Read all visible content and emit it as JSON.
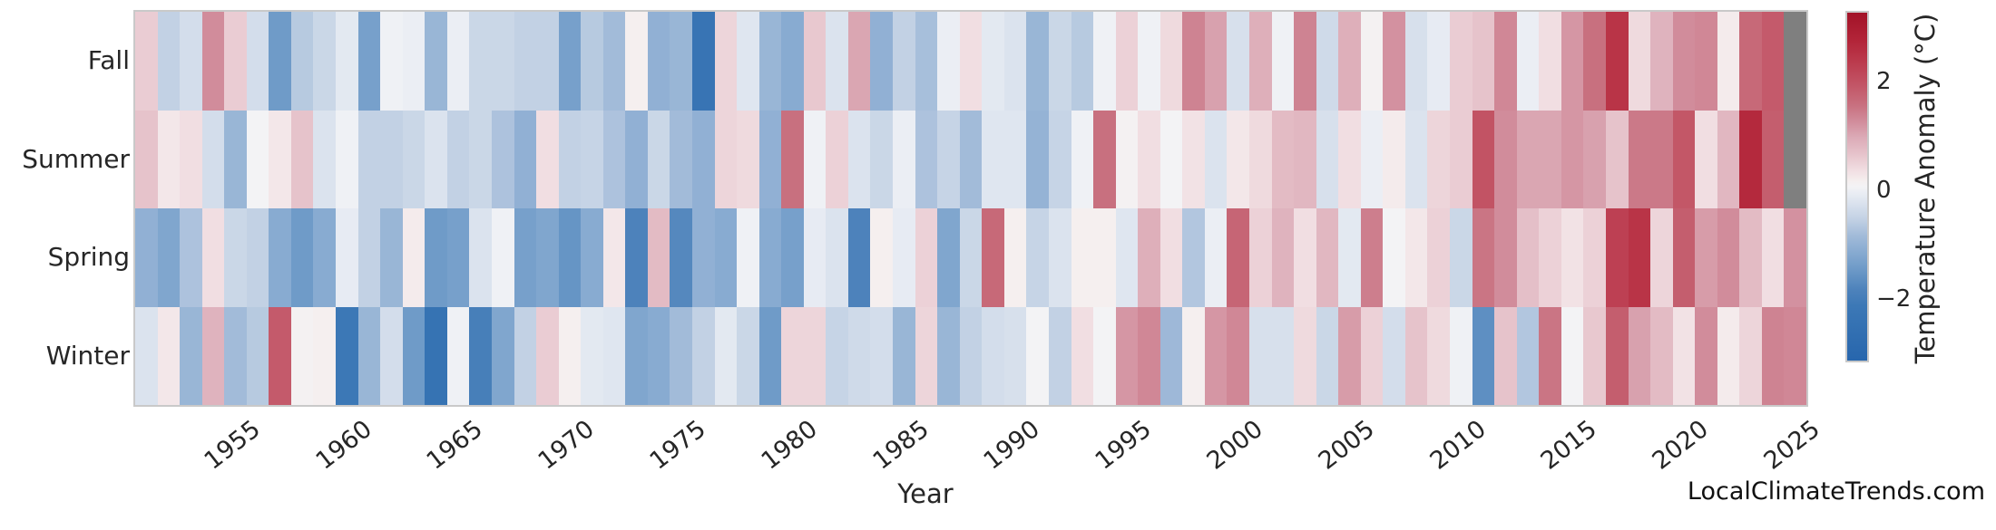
{
  "page": {
    "watermark": "LocalClimateTrends.com"
  },
  "chart_data": {
    "type": "heatmap",
    "xlabel": "Year",
    "colorbar_label": "Temperature Anomaly (°C)",
    "rows": [
      "Fall",
      "Summer",
      "Spring",
      "Winter"
    ],
    "years": [
      1951,
      1952,
      1953,
      1954,
      1955,
      1956,
      1957,
      1958,
      1959,
      1960,
      1961,
      1962,
      1963,
      1964,
      1965,
      1966,
      1967,
      1968,
      1969,
      1970,
      1971,
      1972,
      1973,
      1974,
      1975,
      1976,
      1977,
      1978,
      1979,
      1980,
      1981,
      1982,
      1983,
      1984,
      1985,
      1986,
      1987,
      1988,
      1989,
      1990,
      1991,
      1992,
      1993,
      1994,
      1995,
      1996,
      1997,
      1998,
      1999,
      2000,
      2001,
      2002,
      2003,
      2004,
      2005,
      2006,
      2007,
      2008,
      2009,
      2010,
      2011,
      2012,
      2013,
      2014,
      2015,
      2016,
      2017,
      2018,
      2019,
      2020,
      2021,
      2022,
      2023,
      2024,
      2025
    ],
    "x_ticks": [
      1955,
      1960,
      1965,
      1970,
      1975,
      1980,
      1985,
      1990,
      1995,
      2000,
      2005,
      2010,
      2015,
      2020,
      2025
    ],
    "series": [
      {
        "name": "Fall",
        "values": [
          0.5,
          -0.6,
          -0.4,
          1.2,
          0.5,
          -0.4,
          -1.5,
          -0.7,
          -0.5,
          -0.2,
          -1.4,
          -0.05,
          -0.1,
          -1.0,
          -0.1,
          -0.5,
          -0.5,
          -0.6,
          -0.6,
          -1.4,
          -0.7,
          -0.9,
          0.1,
          -1.1,
          -1.0,
          -2.4,
          0.4,
          -0.25,
          -1.0,
          -1.2,
          0.55,
          -0.3,
          0.95,
          -1.1,
          -0.6,
          -0.85,
          -0.1,
          0.3,
          -0.2,
          -0.3,
          -1.0,
          -0.5,
          -0.7,
          -0.05,
          0.45,
          -0.05,
          0.35,
          1.3,
          1.0,
          -0.35,
          0.85,
          -0.05,
          1.3,
          -0.45,
          0.85,
          0.05,
          1.15,
          -0.35,
          -0.15,
          0.5,
          0.6,
          1.25,
          -0.1,
          0.3,
          1.1,
          1.5,
          2.4,
          0.35,
          0.8,
          1.2,
          1.25,
          0.15,
          1.6,
          1.8,
          null
        ]
      },
      {
        "name": "Summer",
        "values": [
          0.6,
          0.2,
          0.3,
          -0.4,
          -1.0,
          0.0,
          0.2,
          0.6,
          -0.3,
          -0.05,
          -0.6,
          -0.6,
          -0.5,
          -0.3,
          -0.6,
          -0.5,
          -0.8,
          -1.1,
          0.3,
          -0.6,
          -0.55,
          -0.8,
          -1.1,
          -0.5,
          -0.9,
          -1.1,
          0.4,
          0.35,
          -1.1,
          1.5,
          -0.05,
          0.45,
          -0.3,
          -0.5,
          -0.1,
          -0.8,
          -0.55,
          -0.9,
          -0.25,
          -0.25,
          -1.05,
          -0.55,
          -0.05,
          1.5,
          0.05,
          0.3,
          0.0,
          0.25,
          -0.3,
          0.2,
          0.35,
          0.7,
          0.75,
          -0.35,
          0.3,
          -0.1,
          0.15,
          -0.3,
          0.4,
          0.5,
          1.9,
          1.2,
          0.95,
          0.95,
          1.1,
          1.0,
          0.6,
          1.4,
          1.4,
          1.85,
          0.3,
          0.75,
          2.6,
          1.75,
          null
        ]
      },
      {
        "name": "Spring",
        "values": [
          -1.1,
          -1.3,
          -0.8,
          0.3,
          -0.5,
          -0.6,
          -1.2,
          -1.5,
          -1.2,
          -0.15,
          -0.6,
          -1.0,
          0.15,
          -1.5,
          -1.4,
          -0.3,
          -0.05,
          -1.4,
          -1.3,
          -1.6,
          -1.2,
          0.2,
          -1.9,
          0.7,
          -1.8,
          -1.1,
          -1.2,
          -0.05,
          -1.2,
          -1.4,
          -0.15,
          -0.3,
          -1.9,
          0.1,
          -0.15,
          0.45,
          -1.3,
          -0.5,
          1.6,
          0.1,
          -0.55,
          -0.3,
          0.1,
          0.1,
          -0.25,
          0.85,
          0.3,
          -0.75,
          -0.1,
          1.65,
          0.45,
          0.8,
          0.3,
          0.75,
          -0.2,
          1.35,
          0.0,
          0.2,
          0.45,
          -0.5,
          1.45,
          1.2,
          0.65,
          0.45,
          0.25,
          0.45,
          2.2,
          2.4,
          0.4,
          1.75,
          1.05,
          1.2,
          0.7,
          0.3,
          1.15
        ]
      },
      {
        "name": "Winter",
        "values": [
          -0.3,
          0.2,
          -1.0,
          0.8,
          -0.9,
          -0.7,
          1.8,
          0.05,
          0.1,
          -2.2,
          -1.0,
          -0.4,
          -1.5,
          -2.5,
          -0.05,
          -2.0,
          -1.3,
          -0.6,
          0.5,
          0.1,
          -0.2,
          -0.25,
          -1.3,
          -1.2,
          -0.9,
          -0.6,
          -0.2,
          -0.5,
          -1.5,
          0.4,
          0.4,
          -0.55,
          -0.45,
          -0.4,
          -1.0,
          0.4,
          -1.0,
          -0.6,
          -0.4,
          -0.35,
          0.0,
          -0.6,
          0.3,
          0.0,
          1.1,
          1.25,
          -0.95,
          0.1,
          1.1,
          1.25,
          -0.35,
          -0.35,
          0.35,
          -0.5,
          1.05,
          0.45,
          -0.4,
          0.6,
          0.35,
          -0.05,
          -1.7,
          0.6,
          -0.75,
          1.45,
          0.0,
          0.55,
          1.75,
          1.0,
          0.7,
          0.25,
          1.2,
          0.15,
          0.4,
          1.3,
          1.25
        ]
      }
    ],
    "vmin": -3.2,
    "vmax": 3.2,
    "colorbar_ticks": [
      {
        "label": "2",
        "value": 2
      },
      {
        "label": "0",
        "value": 0
      },
      {
        "label": "−2",
        "value": -2
      }
    ],
    "nan_color": "#7f7f7f",
    "colormap_stops": [
      {
        "v": -3.2,
        "c": "#2766ad"
      },
      {
        "v": -2.2,
        "c": "#3c78b6"
      },
      {
        "v": -1.9,
        "c": "#4d82bb"
      },
      {
        "v": -1.5,
        "c": "#6f9bc8"
      },
      {
        "v": -1.2,
        "c": "#88abd1"
      },
      {
        "v": -0.9,
        "c": "#a2bbd9"
      },
      {
        "v": -0.6,
        "c": "#c2d1e4"
      },
      {
        "v": -0.3,
        "c": "#dbe3ee"
      },
      {
        "v": -0.1,
        "c": "#ebeef4"
      },
      {
        "v": 0.0,
        "c": "#f3f3f5"
      },
      {
        "v": 0.1,
        "c": "#f5efef"
      },
      {
        "v": 0.3,
        "c": "#f1dee2"
      },
      {
        "v": 0.6,
        "c": "#e6c3cb"
      },
      {
        "v": 0.9,
        "c": "#dcabb7"
      },
      {
        "v": 1.2,
        "c": "#d18c9b"
      },
      {
        "v": 1.5,
        "c": "#c8707f"
      },
      {
        "v": 1.9,
        "c": "#c25364"
      },
      {
        "v": 2.4,
        "c": "#b93447"
      },
      {
        "v": 2.7,
        "c": "#b22438"
      },
      {
        "v": 3.2,
        "c": "#a21328"
      }
    ]
  }
}
